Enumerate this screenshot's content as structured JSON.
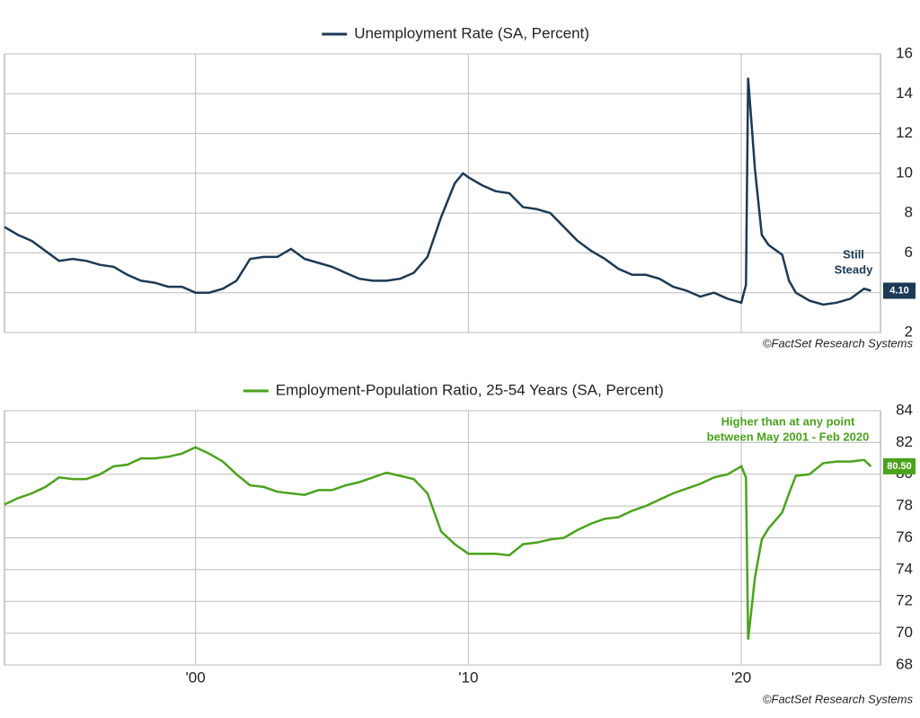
{
  "chart_data": [
    {
      "type": "line",
      "xlim": [
        1993,
        2025.1
      ],
      "ylim": [
        2,
        16
      ],
      "yticks": [
        2,
        4,
        6,
        8,
        10,
        12,
        14,
        16
      ],
      "grid": true,
      "series": [
        {
          "name": "Unemployment Rate (SA, Percent)",
          "color": "#1c3a55",
          "x": [
            1993,
            1993.5,
            1994,
            1994.5,
            1995,
            1995.5,
            1996,
            1996.5,
            1997,
            1997.5,
            1998,
            1998.5,
            1999,
            1999.5,
            2000,
            2000.5,
            2001,
            2001.5,
            2002,
            2002.5,
            2003,
            2003.5,
            2004,
            2004.5,
            2005,
            2005.5,
            2006,
            2006.5,
            2007,
            2007.5,
            2008,
            2008.5,
            2009,
            2009.5,
            2009.8,
            2010,
            2010.5,
            2011,
            2011.5,
            2012,
            2012.5,
            2013,
            2013.5,
            2014,
            2014.5,
            2015,
            2015.5,
            2016,
            2016.5,
            2017,
            2017.5,
            2018,
            2018.5,
            2019,
            2019.5,
            2020,
            2020.17,
            2020.25,
            2020.5,
            2020.75,
            2021,
            2021.5,
            2021.75,
            2022,
            2022.5,
            2023,
            2023.5,
            2024,
            2024.5,
            2024.75
          ],
          "values": [
            7.3,
            6.9,
            6.6,
            6.1,
            5.6,
            5.7,
            5.6,
            5.4,
            5.3,
            4.9,
            4.6,
            4.5,
            4.3,
            4.3,
            4.0,
            4.0,
            4.2,
            4.6,
            5.7,
            5.8,
            5.8,
            6.2,
            5.7,
            5.5,
            5.3,
            5.0,
            4.7,
            4.6,
            4.6,
            4.7,
            5.0,
            5.8,
            7.8,
            9.5,
            10.0,
            9.8,
            9.4,
            9.1,
            9.0,
            8.3,
            8.2,
            8.0,
            7.3,
            6.6,
            6.1,
            5.7,
            5.2,
            4.9,
            4.9,
            4.7,
            4.3,
            4.1,
            3.8,
            4.0,
            3.7,
            3.5,
            4.4,
            14.8,
            10.2,
            6.9,
            6.4,
            5.9,
            4.6,
            4.0,
            3.6,
            3.4,
            3.5,
            3.7,
            4.2,
            4.1
          ]
        }
      ],
      "last_label": {
        "value": 4.1,
        "label": "4.10"
      },
      "annotation": [
        "Still",
        "Steady"
      ],
      "source": "©FactSet Research Systems"
    },
    {
      "type": "line",
      "xlim": [
        1993,
        2025.1
      ],
      "ylim": [
        68,
        84
      ],
      "yticks": [
        68,
        70,
        72,
        74,
        76,
        78,
        80,
        82,
        84
      ],
      "grid": true,
      "xticks": [
        {
          "value": 2000,
          "label": "'00"
        },
        {
          "value": 2010,
          "label": "'10"
        },
        {
          "value": 2020,
          "label": "'20"
        }
      ],
      "series": [
        {
          "name": "Employment-Population Ratio, 25-54 Years (SA, Percent)",
          "color": "#4aa31c",
          "x": [
            1993,
            1993.5,
            1994,
            1994.5,
            1995,
            1995.5,
            1996,
            1996.5,
            1997,
            1997.5,
            1998,
            1998.5,
            1999,
            1999.5,
            2000,
            2000.5,
            2001,
            2001.5,
            2002,
            2002.5,
            2003,
            2003.5,
            2004,
            2004.5,
            2005,
            2005.5,
            2006,
            2006.5,
            2007,
            2007.5,
            2008,
            2008.5,
            2009,
            2009.5,
            2010,
            2010.5,
            2011,
            2011.5,
            2012,
            2012.5,
            2013,
            2013.5,
            2014,
            2014.5,
            2015,
            2015.5,
            2016,
            2016.5,
            2017,
            2017.5,
            2018,
            2018.5,
            2019,
            2019.5,
            2020,
            2020.17,
            2020.25,
            2020.5,
            2020.75,
            2021,
            2021.5,
            2021.75,
            2022,
            2022.5,
            2023,
            2023.5,
            2024,
            2024.5,
            2024.75
          ],
          "values": [
            78.1,
            78.5,
            78.8,
            79.2,
            79.8,
            79.7,
            79.7,
            80.0,
            80.5,
            80.6,
            81.0,
            81.0,
            81.1,
            81.3,
            81.7,
            81.3,
            80.8,
            80.0,
            79.3,
            79.2,
            78.9,
            78.8,
            78.7,
            79.0,
            79.0,
            79.3,
            79.5,
            79.8,
            80.1,
            79.9,
            79.7,
            78.8,
            76.4,
            75.6,
            75.0,
            75.0,
            75.0,
            74.9,
            75.6,
            75.7,
            75.9,
            76.0,
            76.5,
            76.9,
            77.2,
            77.3,
            77.7,
            78.0,
            78.4,
            78.8,
            79.1,
            79.4,
            79.8,
            80.0,
            80.5,
            79.8,
            69.6,
            73.5,
            75.9,
            76.6,
            77.6,
            78.8,
            79.9,
            80.0,
            80.7,
            80.8,
            80.8,
            80.9,
            80.5
          ]
        }
      ],
      "last_label": {
        "value": 80.5,
        "label": "80.50"
      },
      "annotation": [
        "Higher than at any point",
        "between May 2001 - Feb 2020"
      ],
      "source": "©FactSet Research Systems"
    }
  ]
}
